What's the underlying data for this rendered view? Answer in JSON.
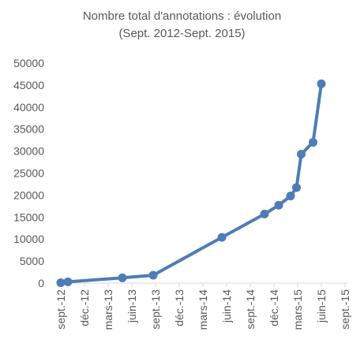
{
  "chart_data": {
    "type": "line",
    "title": "Nombre total d'annotations : évolution",
    "subtitle": "(Sept. 2012-Sept. 2015)",
    "xlabel": "",
    "ylabel": "",
    "ylim": [
      0,
      50000
    ],
    "yticks": [
      0,
      5000,
      10000,
      15000,
      20000,
      25000,
      30000,
      35000,
      40000,
      45000,
      50000
    ],
    "x_ticks": [
      "sept.-12",
      "déc.-12",
      "mars-13",
      "juin-13",
      "sept.-13",
      "déc.-13",
      "mars-14",
      "juin-14",
      "sept.-14",
      "déc.-14",
      "mars-15",
      "juin-15",
      "sept.-15"
    ],
    "grid": false,
    "legend": "none",
    "color": "#4f7cb5",
    "series": [
      {
        "x": [
          0,
          0.3,
          2.6,
          3.9,
          6.8,
          8.6,
          9.2,
          9.7,
          9.95,
          10.15,
          10.65,
          11.0
        ],
        "values": [
          100,
          300,
          1200,
          1800,
          10400,
          15700,
          17700,
          19800,
          21700,
          29300,
          32000,
          45300
        ]
      }
    ]
  }
}
